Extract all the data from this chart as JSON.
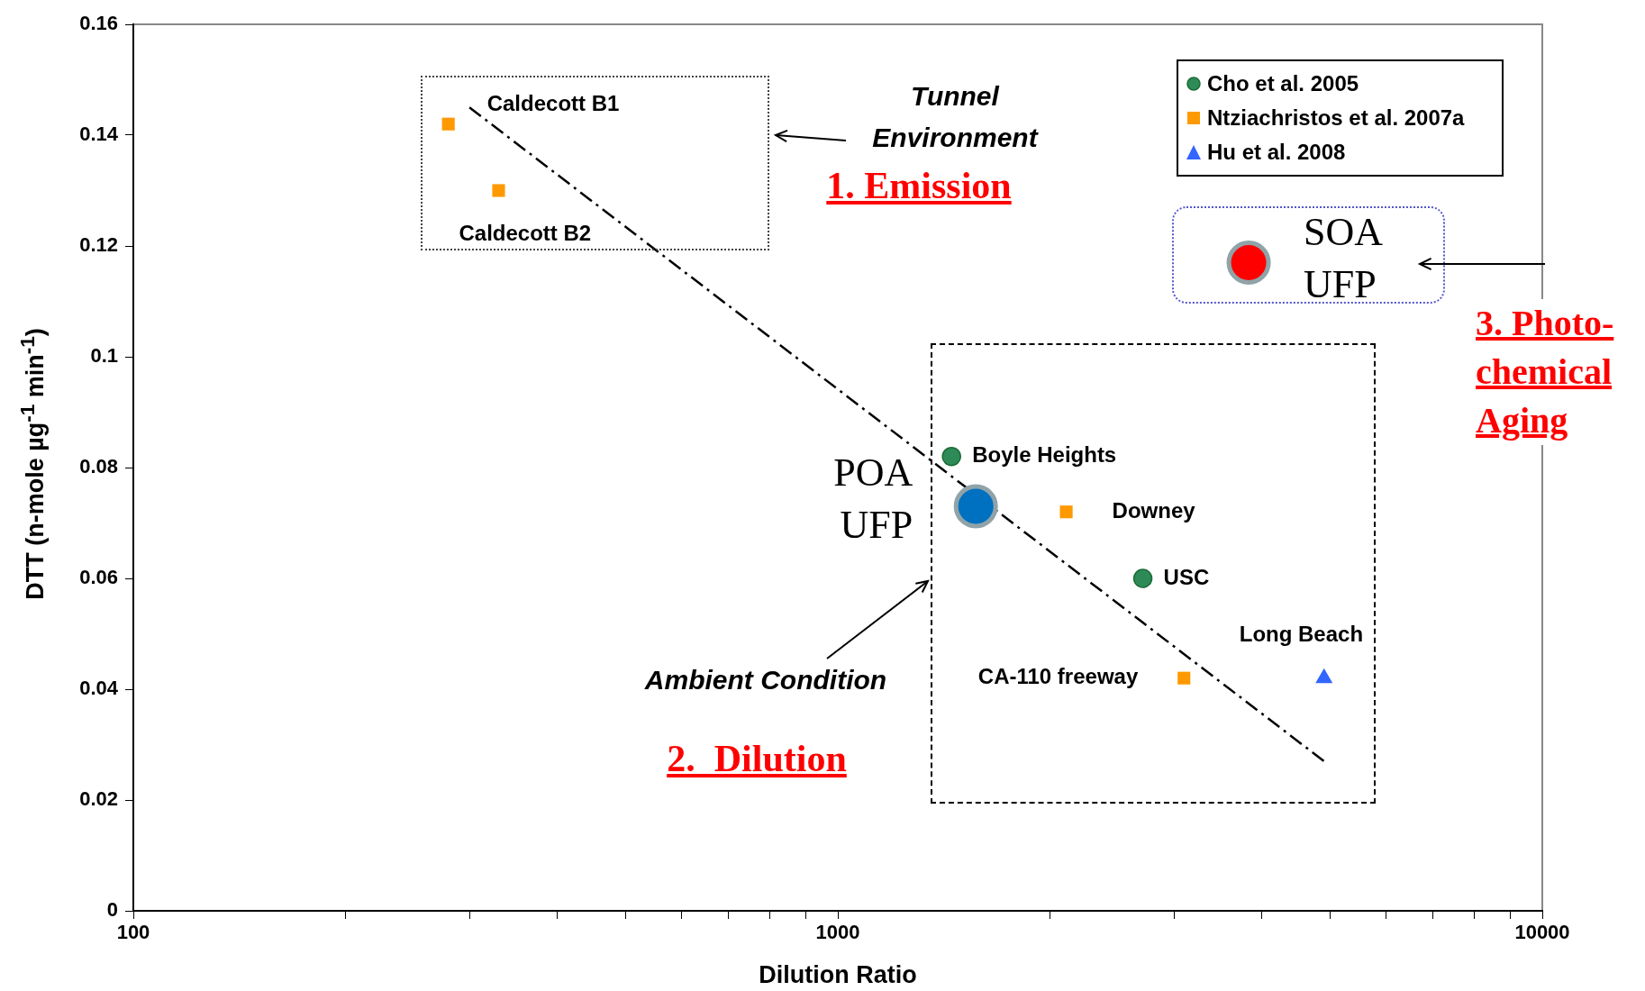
{
  "chart_data": {
    "type": "scatter",
    "xlabel": "Dilution Ratio",
    "ylabel": "DTT (n-mole µg$^{-1}$ min$^{-1}$)",
    "log": "x",
    "legend": "top right",
    "xlim": [
      100,
      10000
    ],
    "ylim": [
      0,
      0.16
    ],
    "xticks": [
      100,
      {
        "value": 200,
        "label": null
      },
      {
        "value": 300,
        "label": null
      },
      {
        "value": 400,
        "label": null
      },
      {
        "value": 500,
        "label": null
      },
      {
        "value": 600,
        "label": null
      },
      {
        "value": 700,
        "label": null
      },
      {
        "value": 800,
        "label": null
      },
      {
        "value": 900,
        "label": null
      },
      1000,
      {
        "value": 2000,
        "label": null
      },
      {
        "value": 3000,
        "label": null
      },
      {
        "value": 4000,
        "label": null
      },
      {
        "value": 5000,
        "label": null
      },
      {
        "value": 6000,
        "label": null
      },
      {
        "value": 7000,
        "label": null
      },
      {
        "value": 8000,
        "label": null
      },
      {
        "value": 9000,
        "label": null
      },
      10000
    ],
    "yticks": [
      0,
      0.02,
      0.04,
      0.06,
      0.08,
      0.1,
      0.12,
      0.14,
      0.16
    ],
    "series": [
      {
        "name": "Cho et al. 2005",
        "marker": "circle",
        "color": "#2e8b57",
        "x": [
          1450,
          2710
        ],
        "values": [
          0.082,
          0.06
        ]
      },
      {
        "name": "Ntziachristos et al. 2007a",
        "marker": "square",
        "color": "#ff9900",
        "x": [
          280,
          330,
          2110,
          3100
        ],
        "values": [
          0.142,
          0.13,
          0.072,
          0.042
        ]
      },
      {
        "name": "Hu et al. 2008",
        "marker": "triangle",
        "color": "#3366ff",
        "x": [
          4900
        ],
        "values": [
          0.042
        ]
      },
      {
        "type": "bubble",
        "color": "#0070c0",
        "x": [
          1570
        ],
        "values": [
          0.073
        ],
        "sizes": [
          1
        ]
      },
      {
        "type": "bubble",
        "color": "#ff0000",
        "x": [
          3830
        ],
        "values": [
          0.117
        ],
        "sizes": [
          1
        ]
      },
      {
        "type": "line",
        "color": "#000000",
        "line_style": "dashed",
        "marker": "none",
        "x": [
          300,
          4900
        ],
        "values": [
          0.145,
          0.027
        ]
      }
    ],
    "annotations": [
      {
        "text": "Caldecott B1",
        "x": 280,
        "y": 0.142
      },
      {
        "text": "Caldecott B2",
        "x": 330,
        "y": 0.13
      },
      {
        "text": "Boyle Heights",
        "x": 1450,
        "y": 0.082
      },
      {
        "text": "Downey",
        "x": 2110,
        "y": 0.072
      },
      {
        "text": "USC",
        "x": 2710,
        "y": 0.06
      },
      {
        "text": "CA-110 freeway",
        "x": 3100,
        "y": 0.042
      },
      {
        "text": "Long Beach",
        "x": 4900,
        "y": 0.042
      },
      {
        "text": "POA UFP",
        "x": 1570,
        "y": 0.073
      },
      {
        "text": "SOA UFP",
        "x": 3830,
        "y": 0.117
      },
      "Tunnel Environment",
      "1. Emission",
      "Ambient Condition",
      "2.  Dilution",
      "3. Photo-chemical Aging"
    ]
  }
}
